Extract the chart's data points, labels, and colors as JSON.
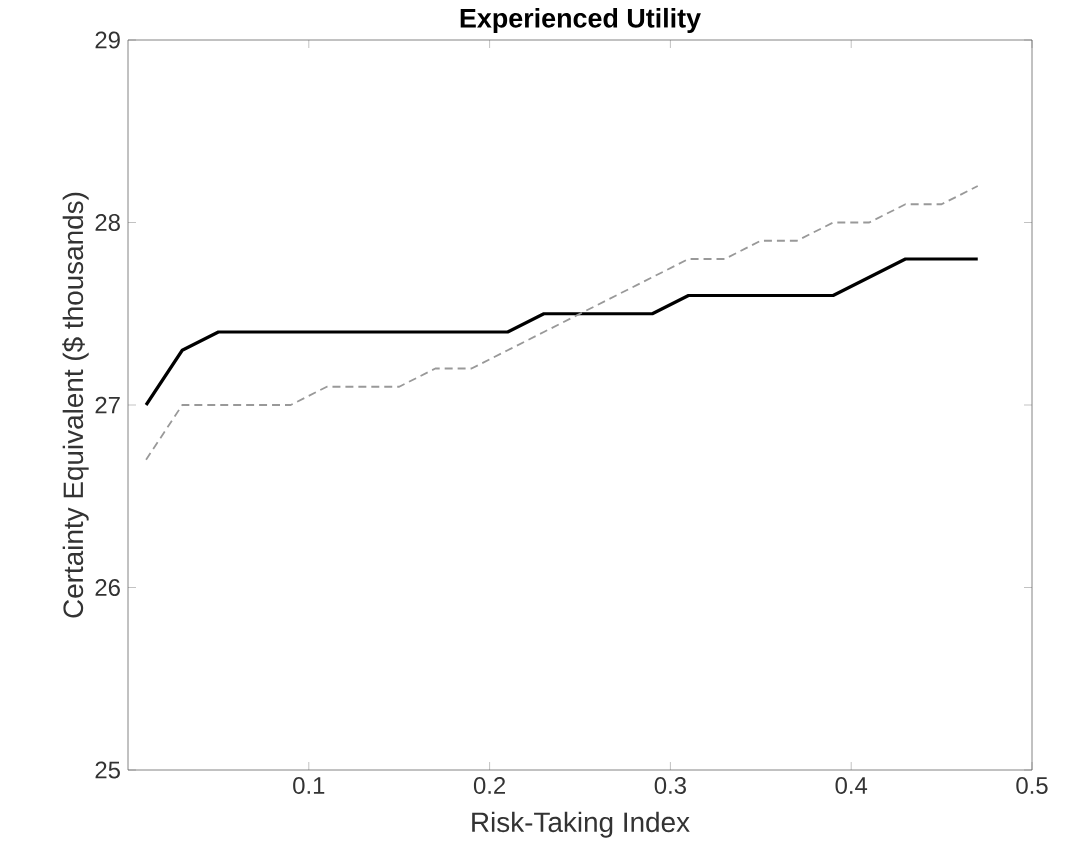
{
  "chart_data": {
    "type": "line",
    "title": "Experienced Utility",
    "xlabel": "Risk-Taking Index",
    "ylabel": "Certainty Equivalent ($ thousands)",
    "x": [
      0.01,
      0.03,
      0.05,
      0.07,
      0.09,
      0.11,
      0.13,
      0.15,
      0.17,
      0.19,
      0.21,
      0.23,
      0.25,
      0.27,
      0.29,
      0.31,
      0.33,
      0.35,
      0.37,
      0.39,
      0.41,
      0.43,
      0.45,
      0.47
    ],
    "series": [
      {
        "color": "#000000",
        "line_style": "solid",
        "values": [
          27.0,
          27.3,
          27.4,
          27.4,
          27.4,
          27.4,
          27.4,
          27.4,
          27.4,
          27.4,
          27.4,
          27.5,
          27.5,
          27.5,
          27.5,
          27.6,
          27.6,
          27.6,
          27.6,
          27.6,
          27.7,
          27.8,
          27.8,
          27.8
        ]
      },
      {
        "color": "#999999",
        "line_style": "dashed",
        "values": [
          26.7,
          27.0,
          27.0,
          27.0,
          27.0,
          27.1,
          27.1,
          27.1,
          27.2,
          27.2,
          27.3,
          27.4,
          27.5,
          27.6,
          27.7,
          27.8,
          27.8,
          27.9,
          27.9,
          28.0,
          28.0,
          28.1,
          28.1,
          28.2
        ]
      }
    ],
    "xlim": [
      0,
      0.5
    ],
    "xticks": [
      0.1,
      0.2,
      0.3,
      0.4,
      0.5
    ],
    "ylim": [
      25,
      29
    ],
    "yticks": [
      25,
      26,
      27,
      28,
      29
    ],
    "marker": "none"
  }
}
